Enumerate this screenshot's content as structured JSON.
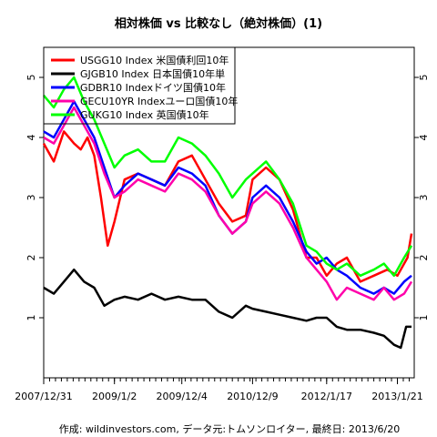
{
  "chart_data": {
    "type": "line",
    "title": "相対株価 vs 比較なし（絶対株価）(1)",
    "footer": "作成: wildinvestors.com, データ元:トムソンロイター, 最終日: 2013/6/20",
    "x_tick_labels": [
      "2007/12/31",
      "2009/1/2",
      "2009/12/4",
      "2010/12/9",
      "2012/1/17",
      "2013/1/21"
    ],
    "x_tick_positions": [
      0,
      1.05,
      2.05,
      3.1,
      4.2,
      5.25
    ],
    "xlim": [
      0,
      5.5
    ],
    "ylim": [
      0,
      5.5
    ],
    "y_ticks": [
      1,
      2,
      3,
      4,
      5
    ],
    "y_tick_labels": [
      "1",
      "2",
      "3",
      "4",
      "5"
    ],
    "grid": false,
    "legend_position": "top-left",
    "series": [
      {
        "name": "USGG10 Index 米国債利回10年",
        "color": "#ff0000",
        "x": [
          0,
          0.15,
          0.3,
          0.45,
          0.55,
          0.65,
          0.75,
          0.85,
          0.95,
          1.05,
          1.2,
          1.4,
          1.6,
          1.8,
          2.0,
          2.2,
          2.4,
          2.6,
          2.8,
          3.0,
          3.1,
          3.3,
          3.5,
          3.7,
          3.9,
          4.05,
          4.2,
          4.35,
          4.5,
          4.7,
          4.9,
          5.1,
          5.25,
          5.4,
          5.46
        ],
        "values": [
          3.9,
          3.6,
          4.1,
          3.9,
          3.8,
          4.0,
          3.7,
          3.0,
          2.2,
          2.6,
          3.3,
          3.4,
          3.3,
          3.2,
          3.6,
          3.7,
          3.3,
          2.9,
          2.6,
          2.7,
          3.3,
          3.5,
          3.3,
          2.8,
          2.0,
          2.0,
          1.7,
          1.9,
          2.0,
          1.6,
          1.7,
          1.8,
          1.7,
          2.0,
          2.4
        ]
      },
      {
        "name": "GJGB10 Index 日本国債10年単",
        "color": "#000000",
        "x": [
          0,
          0.15,
          0.3,
          0.45,
          0.6,
          0.75,
          0.9,
          1.05,
          1.2,
          1.4,
          1.6,
          1.8,
          2.0,
          2.2,
          2.4,
          2.6,
          2.8,
          3.0,
          3.1,
          3.3,
          3.5,
          3.7,
          3.9,
          4.05,
          4.2,
          4.35,
          4.5,
          4.7,
          4.9,
          5.05,
          5.2,
          5.3,
          5.38,
          5.46
        ],
        "values": [
          1.5,
          1.4,
          1.6,
          1.8,
          1.6,
          1.5,
          1.2,
          1.3,
          1.35,
          1.3,
          1.4,
          1.3,
          1.35,
          1.3,
          1.3,
          1.1,
          1.0,
          1.2,
          1.15,
          1.1,
          1.05,
          1.0,
          0.95,
          1.0,
          1.0,
          0.85,
          0.8,
          0.8,
          0.75,
          0.7,
          0.55,
          0.5,
          0.85,
          0.85
        ]
      },
      {
        "name": "GDBR10 Indexドイツ国債10年",
        "color": "#0000ff",
        "x": [
          0,
          0.15,
          0.3,
          0.45,
          0.6,
          0.75,
          0.9,
          1.05,
          1.2,
          1.4,
          1.6,
          1.8,
          2.0,
          2.2,
          2.4,
          2.6,
          2.8,
          3.0,
          3.1,
          3.3,
          3.5,
          3.7,
          3.9,
          4.05,
          4.2,
          4.35,
          4.5,
          4.7,
          4.9,
          5.05,
          5.2,
          5.35,
          5.46
        ],
        "values": [
          4.1,
          4.0,
          4.3,
          4.6,
          4.3,
          4.0,
          3.5,
          3.0,
          3.2,
          3.4,
          3.3,
          3.2,
          3.5,
          3.4,
          3.2,
          2.7,
          2.4,
          2.6,
          3.0,
          3.2,
          3.0,
          2.6,
          2.1,
          1.9,
          2.0,
          1.8,
          1.7,
          1.5,
          1.4,
          1.5,
          1.4,
          1.6,
          1.7
        ]
      },
      {
        "name": "GECU10YR Indexユーロ国債10年",
        "color": "#ff00aa",
        "x": [
          0,
          0.15,
          0.3,
          0.45,
          0.6,
          0.75,
          0.9,
          1.05,
          1.2,
          1.4,
          1.6,
          1.8,
          2.0,
          2.2,
          2.4,
          2.6,
          2.8,
          3.0,
          3.1,
          3.3,
          3.5,
          3.7,
          3.9,
          4.05,
          4.2,
          4.35,
          4.5,
          4.7,
          4.9,
          5.05,
          5.2,
          5.35,
          5.46
        ],
        "values": [
          4.0,
          3.9,
          4.2,
          4.5,
          4.2,
          3.9,
          3.4,
          3.0,
          3.1,
          3.3,
          3.2,
          3.1,
          3.4,
          3.3,
          3.1,
          2.7,
          2.4,
          2.6,
          2.9,
          3.1,
          2.9,
          2.5,
          2.0,
          1.8,
          1.6,
          1.3,
          1.5,
          1.4,
          1.3,
          1.5,
          1.3,
          1.4,
          1.6
        ]
      },
      {
        "name": "GUKG10 Index 英国債10年",
        "color": "#00ff00",
        "x": [
          0,
          0.15,
          0.3,
          0.45,
          0.6,
          0.75,
          0.9,
          1.05,
          1.2,
          1.4,
          1.6,
          1.8,
          2.0,
          2.2,
          2.4,
          2.6,
          2.8,
          3.0,
          3.1,
          3.3,
          3.5,
          3.7,
          3.9,
          4.05,
          4.2,
          4.35,
          4.5,
          4.7,
          4.9,
          5.05,
          5.2,
          5.35,
          5.46
        ],
        "values": [
          4.7,
          4.5,
          4.8,
          5.0,
          4.6,
          4.3,
          3.9,
          3.5,
          3.7,
          3.8,
          3.6,
          3.6,
          4.0,
          3.9,
          3.7,
          3.4,
          3.0,
          3.3,
          3.4,
          3.6,
          3.3,
          2.9,
          2.2,
          2.1,
          1.9,
          1.8,
          1.9,
          1.7,
          1.8,
          1.9,
          1.7,
          2.0,
          2.2
        ]
      }
    ]
  }
}
